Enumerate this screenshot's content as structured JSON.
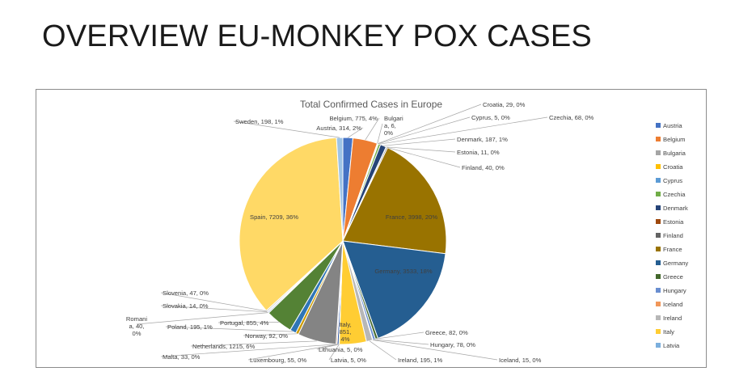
{
  "slide": {
    "title": "OVERVIEW EU-MONKEY POX CASES"
  },
  "chart_data": {
    "type": "pie",
    "title": "Total Confirmed Cases in Europe",
    "legend_placement": "right",
    "slices": [
      {
        "name": "Austria",
        "value": 314,
        "pct": "2%",
        "color": "#4472c4"
      },
      {
        "name": "Belgium",
        "value": 775,
        "pct": "4%",
        "color": "#ed7d31"
      },
      {
        "name": "Bulgaria",
        "value": 6,
        "pct": "0%",
        "color": "#a5a5a5"
      },
      {
        "name": "Croatia",
        "value": 29,
        "pct": "0%",
        "color": "#ffc000"
      },
      {
        "name": "Cyprus",
        "value": 5,
        "pct": "0%",
        "color": "#5b9bd5"
      },
      {
        "name": "Czechia",
        "value": 68,
        "pct": "0%",
        "color": "#70ad47"
      },
      {
        "name": "Denmark",
        "value": 187,
        "pct": "1%",
        "color": "#264478"
      },
      {
        "name": "Estonia",
        "value": 11,
        "pct": "0%",
        "color": "#9e480e"
      },
      {
        "name": "Finland",
        "value": 40,
        "pct": "0%",
        "color": "#636363"
      },
      {
        "name": "France",
        "value": 3998,
        "pct": "20%",
        "color": "#997300"
      },
      {
        "name": "Germany",
        "value": 3533,
        "pct": "18%",
        "color": "#255e91"
      },
      {
        "name": "Greece",
        "value": 82,
        "pct": "0%",
        "color": "#43682b"
      },
      {
        "name": "Hungary",
        "value": 78,
        "pct": "0%",
        "color": "#698ed0"
      },
      {
        "name": "Iceland",
        "value": 15,
        "pct": "0%",
        "color": "#f1975a"
      },
      {
        "name": "Ireland",
        "value": 195,
        "pct": "1%",
        "color": "#b7b7b7"
      },
      {
        "name": "Italy",
        "value": 851,
        "pct": "4%",
        "color": "#ffcd33"
      },
      {
        "name": "Latvia",
        "value": 5,
        "pct": "0%",
        "color": "#7cafdd"
      },
      {
        "name": "Lithuania",
        "value": 5,
        "pct": "0%",
        "color": "#8cc168"
      },
      {
        "name": "Luxembourg",
        "value": 55,
        "pct": "0%",
        "color": "#335aa1"
      },
      {
        "name": "Malta",
        "value": 33,
        "pct": "0%",
        "color": "#d26012"
      },
      {
        "name": "Netherlands",
        "value": 1215,
        "pct": "6%",
        "color": "#848484"
      },
      {
        "name": "Norway",
        "value": 92,
        "pct": "0%",
        "color": "#cc9a00"
      },
      {
        "name": "Poland",
        "value": 195,
        "pct": "1%",
        "color": "#2e75b6"
      },
      {
        "name": "Portugal",
        "value": 855,
        "pct": "4%",
        "color": "#548235"
      },
      {
        "name": "Romania",
        "value": 40,
        "pct": "0%",
        "color": "#8faadc"
      },
      {
        "name": "Slovakia",
        "value": 14,
        "pct": "0%",
        "color": "#f4b183"
      },
      {
        "name": "Slovenia",
        "value": 47,
        "pct": "0%",
        "color": "#c9c9c9"
      },
      {
        "name": "Spain",
        "value": 7209,
        "pct": "36%",
        "color": "#ffd966"
      },
      {
        "name": "Sweden",
        "value": 198,
        "pct": "1%",
        "color": "#9dc3e6"
      }
    ],
    "legend": [
      "Austria",
      "Belgium",
      "Bulgaria",
      "Croatia",
      "Cyprus",
      "Czechia",
      "Denmark",
      "Estonia",
      "Finland",
      "France",
      "Germany",
      "Greece",
      "Hungary",
      "Iceland",
      "Ireland",
      "Italy",
      "Latvia"
    ]
  }
}
